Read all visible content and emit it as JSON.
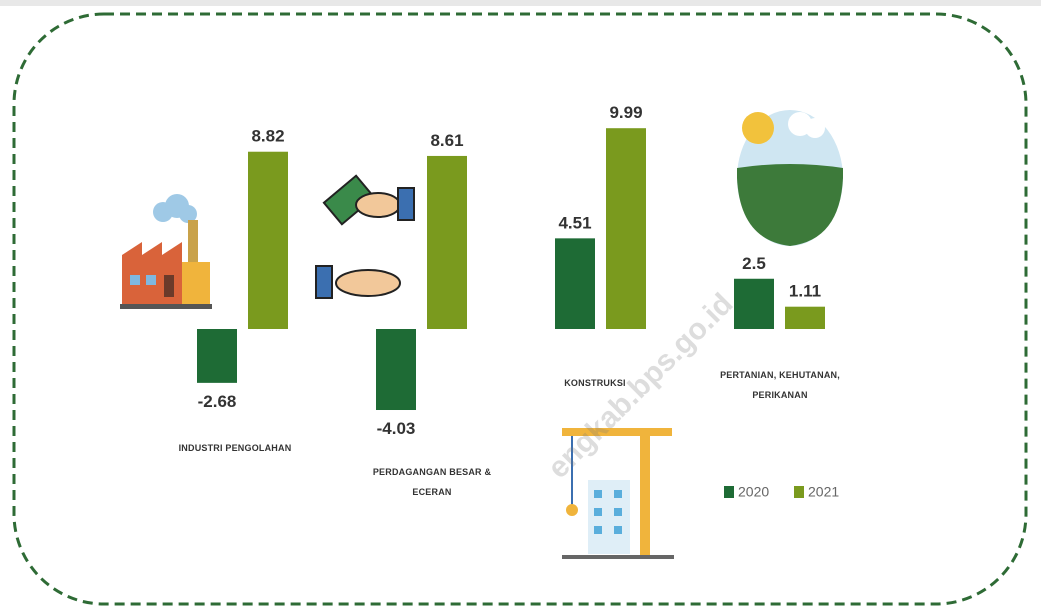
{
  "chart_data": {
    "type": "bar",
    "categories": [
      "INDUSTRI PENGOLAHAN",
      "PERDAGANGAN BESAR & ECERAN",
      "KONSTRUKSI",
      "PERTANIAN, KEHUTANAN, PERIKANAN"
    ],
    "series": [
      {
        "name": "2020",
        "color": "#1e6b35",
        "values": [
          -2.68,
          -4.03,
          4.51,
          2.5
        ]
      },
      {
        "name": "2021",
        "color": "#7a9a1e",
        "values": [
          8.82,
          8.61,
          9.99,
          1.11
        ]
      }
    ],
    "watermark": "engkab.bps.go.id"
  }
}
